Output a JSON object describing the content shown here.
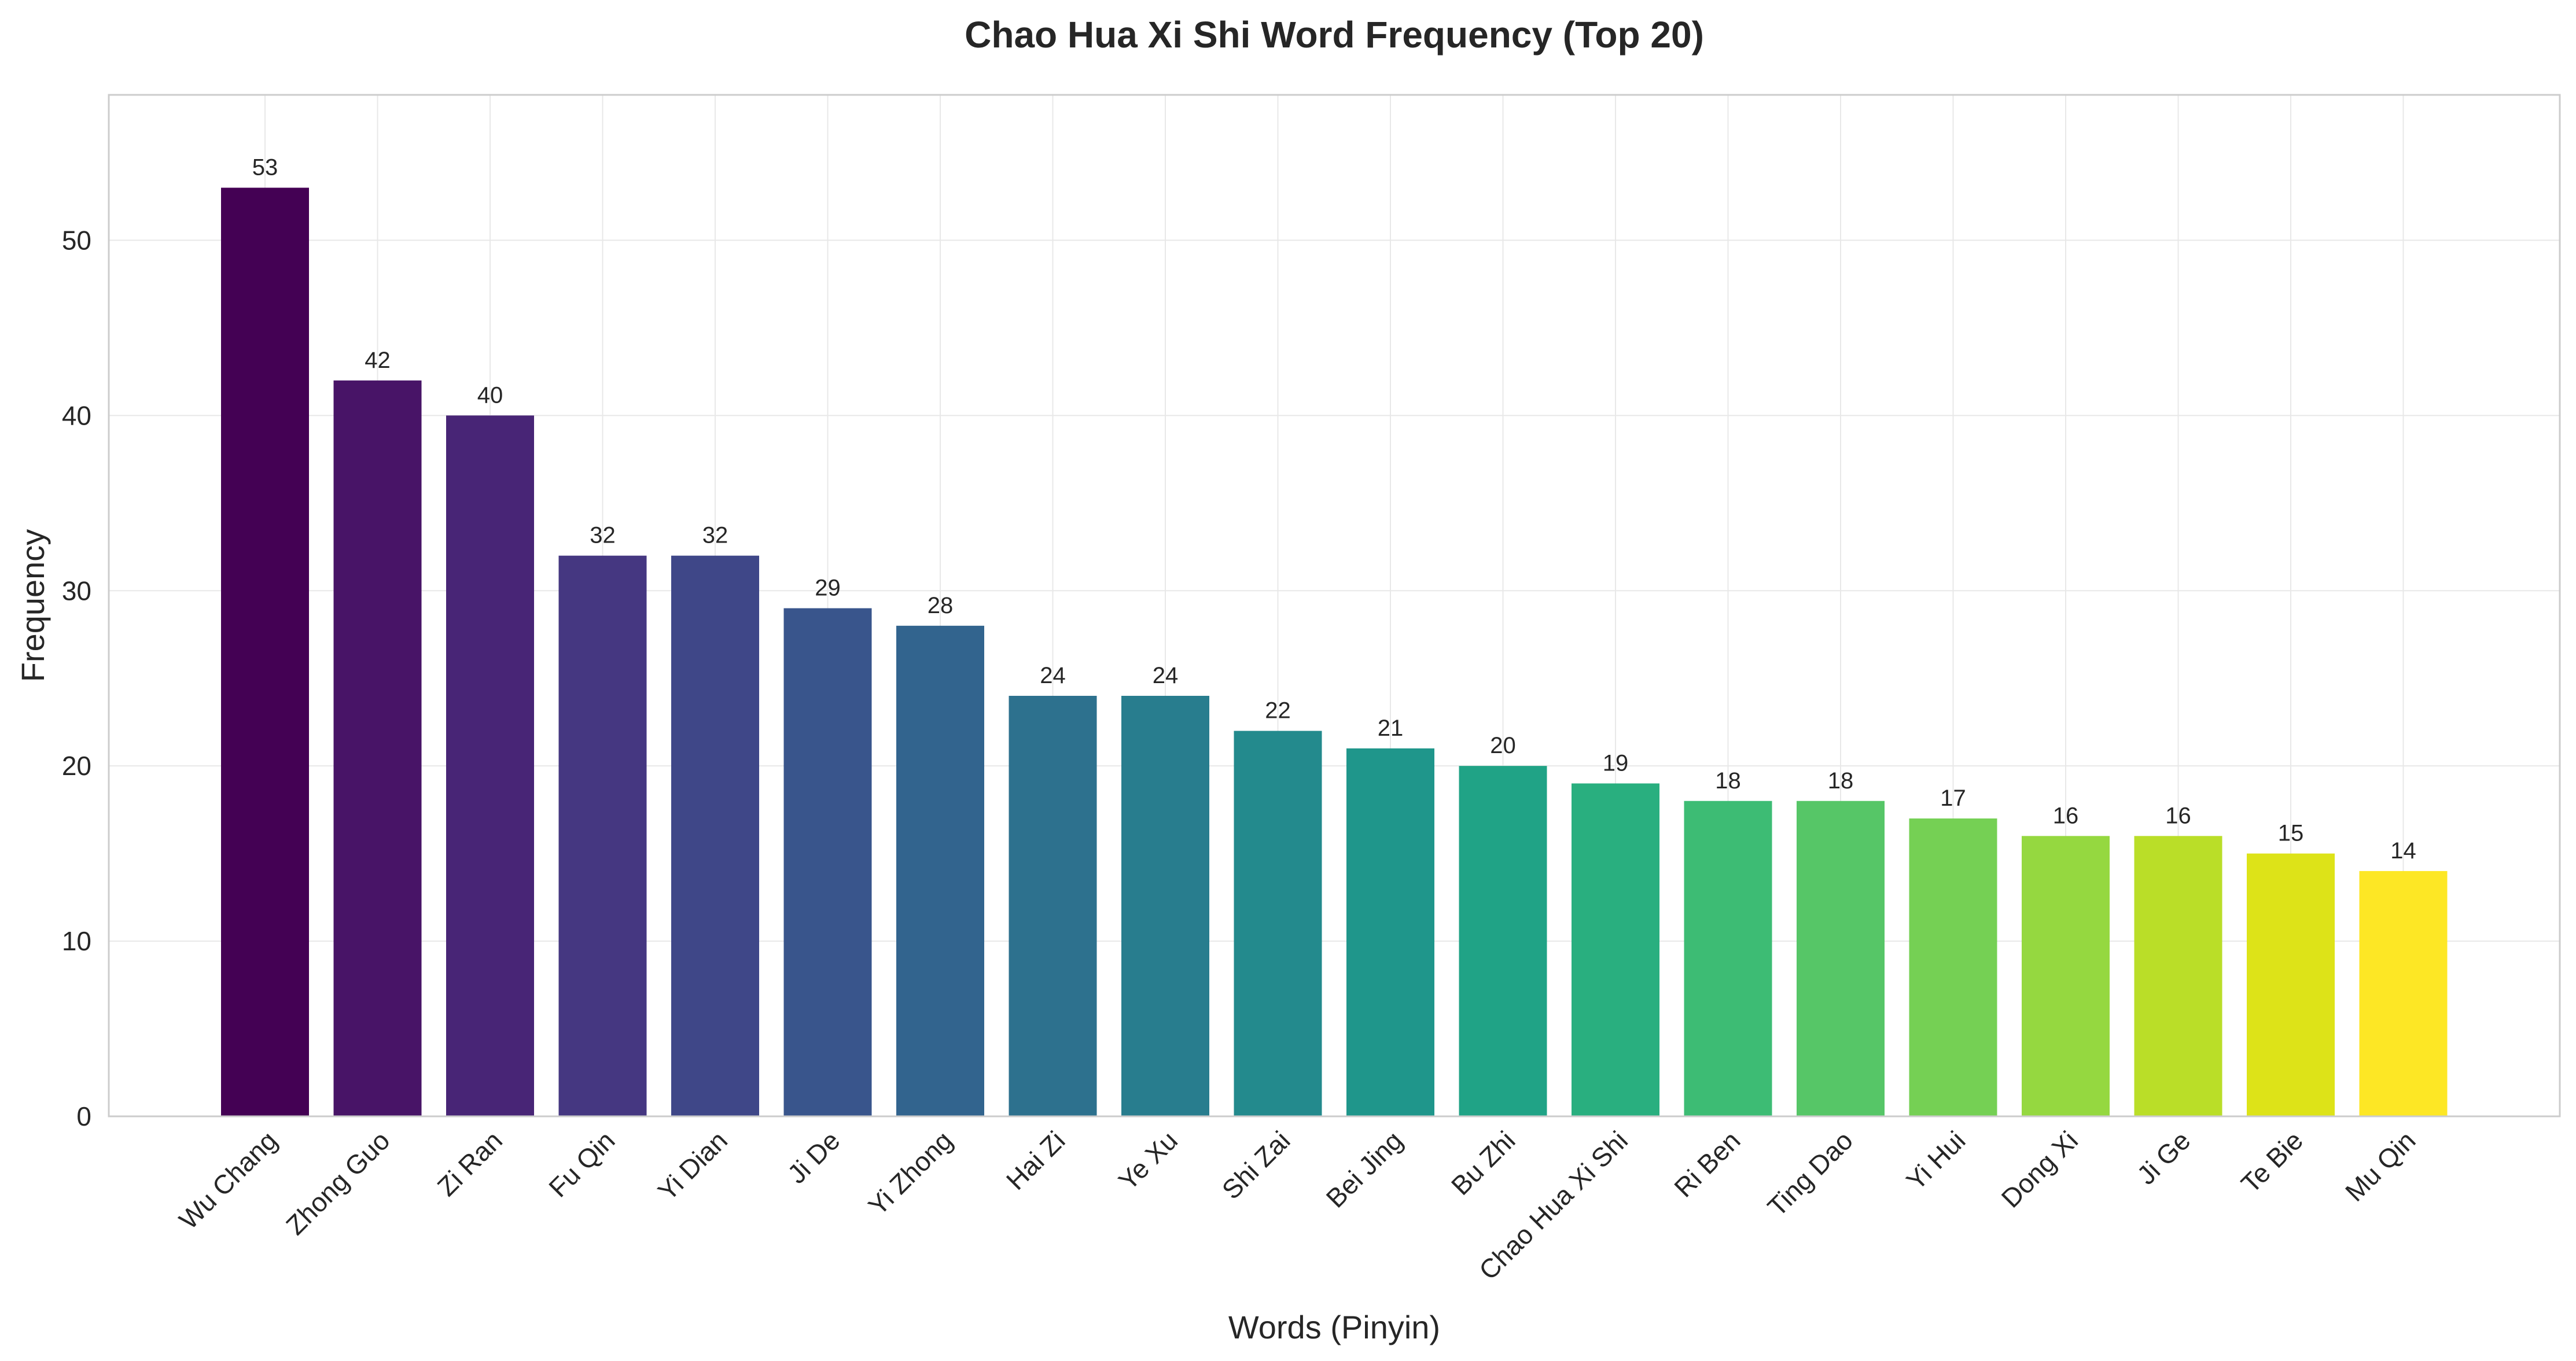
{
  "chart_data": {
    "type": "bar",
    "title": "Chao Hua Xi Shi Word Frequency (Top 20)",
    "xlabel": "Words (Pinyin)",
    "ylabel": "Frequency",
    "ylim": [
      0,
      58.3
    ],
    "yticks": [
      0,
      10,
      20,
      30,
      40,
      50
    ],
    "grid": true,
    "categories": [
      "Wu Chang",
      "Zhong Guo",
      "Zi Ran",
      "Fu Qin",
      "Yi Dian",
      "Ji De",
      "Yi Zhong",
      "Hai Zi",
      "Ye Xu",
      "Shi Zai",
      "Bei Jing",
      "Bu Zhi",
      "Chao Hua Xi Shi",
      "Ri Ben",
      "Ting Dao",
      "Yi Hui",
      "Dong Xi",
      "Ji Ge",
      "Te Bie",
      "Mu Qin"
    ],
    "values": [
      53,
      42,
      40,
      32,
      32,
      29,
      28,
      24,
      24,
      22,
      21,
      20,
      19,
      18,
      18,
      17,
      16,
      16,
      15,
      14
    ],
    "colors": [
      "#440154",
      "#481467",
      "#482576",
      "#453781",
      "#3f4788",
      "#39558c",
      "#32648e",
      "#2d718e",
      "#287d8e",
      "#238a8d",
      "#1f968b",
      "#20a386",
      "#29af7f",
      "#3dbc74",
      "#56c667",
      "#75d054",
      "#95d840",
      "#bade28",
      "#dde318",
      "#fde725"
    ]
  }
}
